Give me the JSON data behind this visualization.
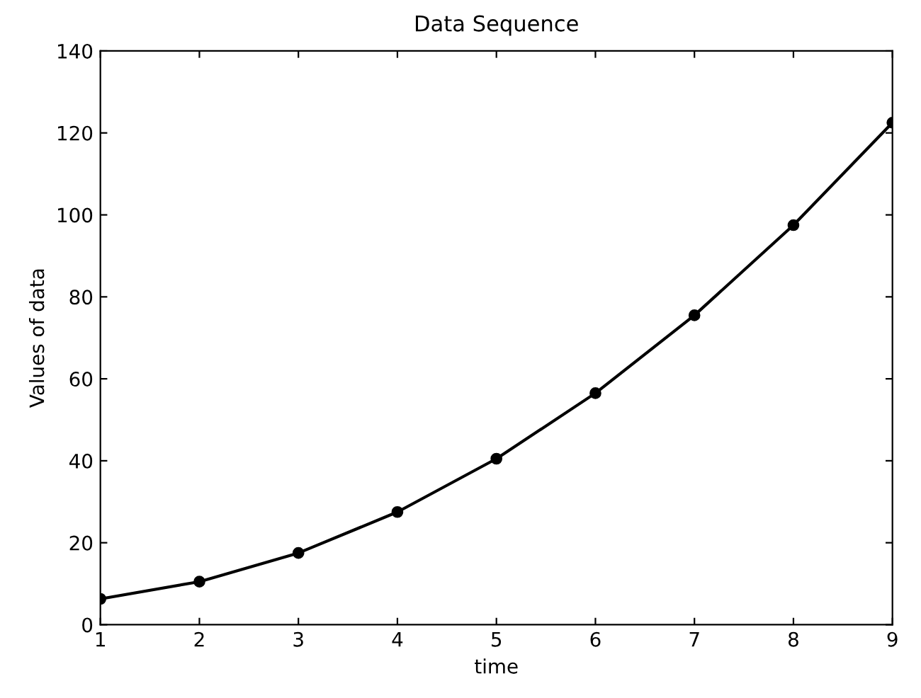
{
  "chart_data": {
    "type": "line",
    "title": "Data Sequence",
    "xlabel": "time",
    "ylabel": "Values of data",
    "x": [
      1,
      2,
      3,
      4,
      5,
      6,
      7,
      8,
      9
    ],
    "series": [
      {
        "color": "#000000",
        "values": [
          6.3,
          10.5,
          17.5,
          27.5,
          40.5,
          56.5,
          75.5,
          97.5,
          122.5
        ]
      }
    ],
    "xlim": [
      1,
      9
    ],
    "xticks": [
      1,
      2,
      3,
      4,
      5,
      6,
      7,
      8,
      9
    ],
    "ylim": [
      0,
      140
    ],
    "yticks": [
      0,
      20,
      40,
      60,
      80,
      100,
      120,
      140
    ],
    "marker": "circle",
    "line_style": "solid",
    "grid": false
  }
}
